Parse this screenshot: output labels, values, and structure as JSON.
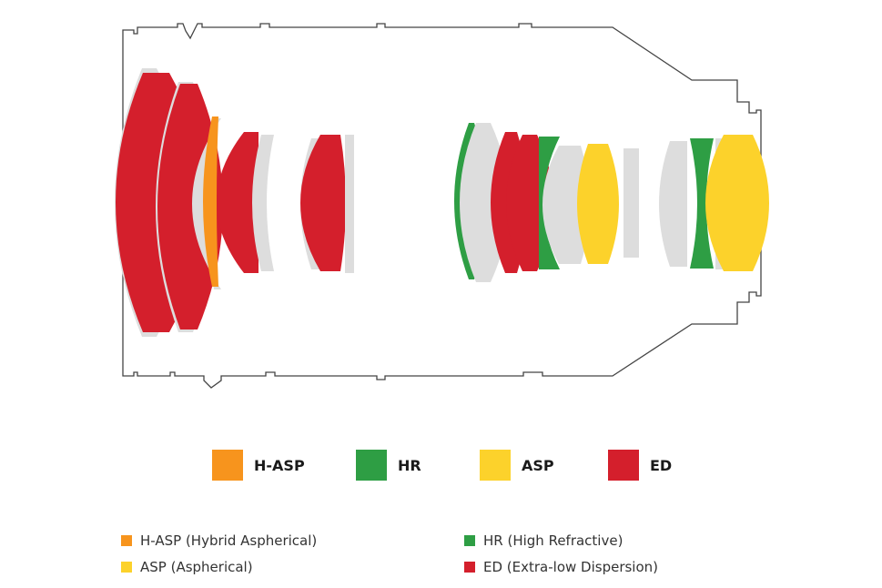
{
  "colors": {
    "glass": "#dddddd",
    "ed": "#d41f2c",
    "hr": "#2e9e44",
    "asp": "#fcd22b",
    "hasp": "#f7941d",
    "outline": "#444444"
  },
  "legend_top": [
    {
      "key": "hasp",
      "label": "H-ASP"
    },
    {
      "key": "hr",
      "label": "HR"
    },
    {
      "key": "asp",
      "label": "ASP"
    },
    {
      "key": "ed",
      "label": "ED"
    }
  ],
  "legend_bottom": [
    {
      "key": "hasp",
      "label": "H-ASP (Hybrid Aspherical)"
    },
    {
      "key": "hr",
      "label": "HR (High Refractive)"
    },
    {
      "key": "asp",
      "label": "ASP (Aspherical)"
    },
    {
      "key": "ed",
      "label": "ED (Extra-low Dispersion)"
    }
  ]
}
